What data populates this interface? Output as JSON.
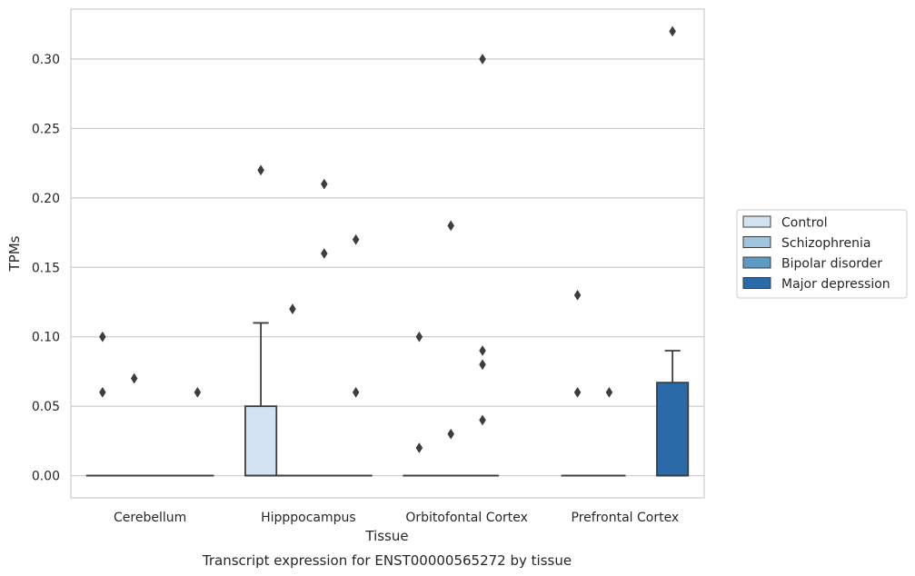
{
  "caption": "Transcript expression for ENST00000565272 by tissue",
  "chart_data": {
    "type": "box",
    "xlabel": "Tissue",
    "ylabel": "TPMs",
    "ylim": [
      -0.016,
      0.336
    ],
    "yticks": [
      0.0,
      0.05,
      0.1,
      0.15,
      0.2,
      0.25,
      0.3
    ],
    "ytick_labels": [
      "0.00",
      "0.05",
      "0.10",
      "0.15",
      "0.20",
      "0.25",
      "0.30"
    ],
    "categories": [
      "Cerebellum",
      "Hipppocampus",
      "Orbitofontal Cortex",
      "Prefrontal Cortex"
    ],
    "grid": "horizontal",
    "legend_position": "right",
    "series": [
      {
        "name": "Control",
        "color": "#d4e3f1",
        "boxes": [
          {
            "q1": 0.0,
            "median": 0.0,
            "q3": 0.0,
            "whislo": 0.0,
            "whishi": 0.0,
            "fliers": [
              0.1,
              0.06
            ]
          },
          {
            "q1": 0.0,
            "median": 0.0,
            "q3": 0.05,
            "whislo": 0.0,
            "whishi": 0.11,
            "fliers": [
              0.22
            ]
          },
          {
            "q1": 0.0,
            "median": 0.0,
            "q3": 0.0,
            "whislo": 0.0,
            "whishi": 0.0,
            "fliers": [
              0.1,
              0.02
            ]
          },
          {
            "q1": 0.0,
            "median": 0.0,
            "q3": 0.0,
            "whislo": 0.0,
            "whishi": 0.0,
            "fliers": [
              0.13,
              0.06
            ]
          }
        ]
      },
      {
        "name": "Schizophrenia",
        "color": "#9fc4dd",
        "boxes": [
          {
            "q1": 0.0,
            "median": 0.0,
            "q3": 0.0,
            "whislo": 0.0,
            "whishi": 0.0,
            "fliers": [
              0.07
            ]
          },
          {
            "q1": 0.0,
            "median": 0.0,
            "q3": 0.0,
            "whislo": 0.0,
            "whishi": 0.0,
            "fliers": [
              0.12
            ]
          },
          {
            "q1": 0.0,
            "median": 0.0,
            "q3": 0.0,
            "whislo": 0.0,
            "whishi": 0.0,
            "fliers": [
              0.18,
              0.03
            ]
          },
          {
            "q1": 0.0,
            "median": 0.0,
            "q3": 0.0,
            "whislo": 0.0,
            "whishi": 0.0,
            "fliers": [
              0.06
            ]
          }
        ]
      },
      {
        "name": "Bipolar disorder",
        "color": "#5f9ac5",
        "boxes": [
          {
            "q1": 0.0,
            "median": 0.0,
            "q3": 0.0,
            "whislo": 0.0,
            "whishi": 0.0,
            "fliers": []
          },
          {
            "q1": 0.0,
            "median": 0.0,
            "q3": 0.0,
            "whislo": 0.0,
            "whishi": 0.0,
            "fliers": [
              0.21,
              0.16
            ]
          },
          {
            "q1": 0.0,
            "median": 0.0,
            "q3": 0.0,
            "whislo": 0.0,
            "whishi": 0.0,
            "fliers": [
              0.3,
              0.09,
              0.08,
              0.04
            ]
          },
          null
        ]
      },
      {
        "name": "Major depression",
        "color": "#2b6aa8",
        "boxes": [
          {
            "q1": 0.0,
            "median": 0.0,
            "q3": 0.0,
            "whislo": 0.0,
            "whishi": 0.0,
            "fliers": [
              0.06
            ]
          },
          {
            "q1": 0.0,
            "median": 0.0,
            "q3": 0.0,
            "whislo": 0.0,
            "whishi": 0.0,
            "fliers": [
              0.17,
              0.06
            ]
          },
          null,
          {
            "q1": 0.0,
            "median": 0.0,
            "q3": 0.067,
            "whislo": 0.0,
            "whishi": 0.09,
            "fliers": [
              0.32
            ]
          }
        ]
      }
    ]
  }
}
